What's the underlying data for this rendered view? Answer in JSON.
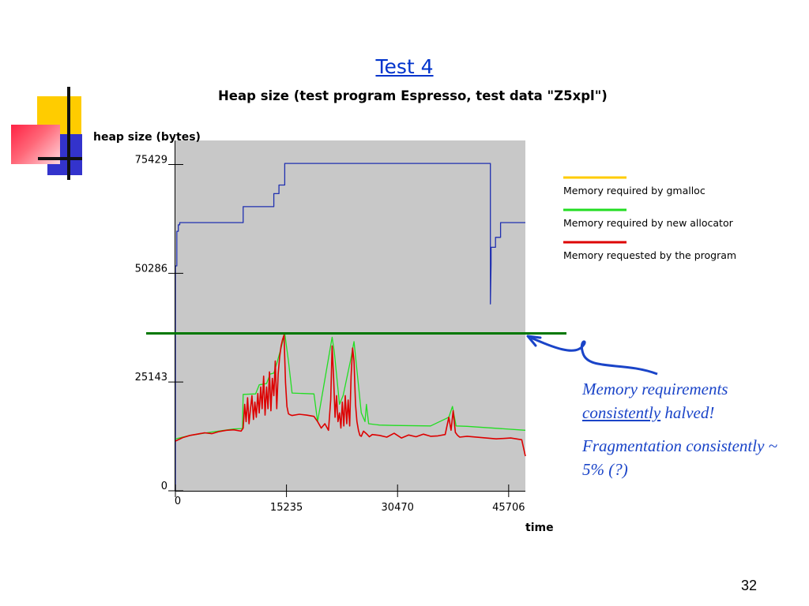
{
  "slide": {
    "title": "Test 4",
    "page_number": "32"
  },
  "annotation": {
    "line1_part1": "Memory requirements",
    "line1_part2_underlined": "consistently",
    "line1_part3": " halved!",
    "line2": "Fragmentation consistently ~ 5% (?)"
  },
  "colors": {
    "blue_series": "#1f2fb0",
    "red_series": "#dd0000",
    "green_series": "#22dd22",
    "gmalloc_legend": "#ffcc00",
    "marker_line": "#007700",
    "plot_bg": "#c8c8c8",
    "annotation": "#1a44c8"
  },
  "chart_data": {
    "type": "line",
    "title": "Heap size (test program Espresso, test data \"Z5xpl\")",
    "xlabel": "time",
    "ylabel": "heap size (bytes)",
    "xlim": [
      0,
      48000
    ],
    "ylim": [
      0,
      81000
    ],
    "x_ticks": [
      0,
      15235,
      30470,
      45706
    ],
    "x_tick_labels": [
      "0",
      "15235",
      "30470",
      "45706"
    ],
    "y_ticks": [
      0,
      25143,
      50286,
      75429
    ],
    "y_tick_labels": [
      "0",
      "25143",
      "50286",
      "75429"
    ],
    "legend": {
      "position": "right",
      "entries": [
        {
          "label": "Memory required by gmalloc",
          "color": "#ffcc00"
        },
        {
          "label": "Memory required by new allocator",
          "color": "#22dd22"
        },
        {
          "label": "Memory requested by the program",
          "color": "#dd0000"
        }
      ]
    },
    "threshold_line": {
      "y": 36400,
      "color": "#007700"
    },
    "series": [
      {
        "color": "#1f2fb0",
        "x": [
          0,
          0,
          200,
          200,
          400,
          400,
          600,
          600,
          9300,
          9300,
          13500,
          13500,
          14200,
          14200,
          15000,
          15000,
          43200,
          43200,
          43300,
          43300,
          43900,
          43900,
          44600,
          44600,
          48000
        ],
        "y": [
          0,
          52000,
          52000,
          60000,
          60000,
          61500,
          61500,
          62000,
          62000,
          65700,
          65700,
          68700,
          68700,
          70700,
          70700,
          75700,
          75700,
          43200,
          52500,
          56300,
          56300,
          58600,
          58600,
          62000,
          62000
        ]
      },
      {
        "color": "#22dd22",
        "x": [
          0,
          2000,
          5000,
          8000,
          9200,
          9300,
          11000,
          11500,
          12500,
          13000,
          13500,
          14000,
          14500,
          15000,
          15500,
          16000,
          19000,
          19500,
          21500,
          21800,
          22500,
          23000,
          24000,
          24500,
          25500,
          26000,
          26200,
          26500,
          27500,
          28000,
          30000,
          35000,
          37500,
          38000,
          38500,
          40000,
          48000
        ],
        "y": [
          12000,
          12800,
          13600,
          14300,
          14400,
          22300,
          22400,
          24500,
          24800,
          27000,
          27200,
          30000,
          33000,
          36400,
          30000,
          22600,
          22400,
          16000,
          35500,
          32000,
          20000,
          22000,
          30000,
          34500,
          18000,
          16000,
          20000,
          15500,
          15300,
          15200,
          15100,
          15000,
          17000,
          19500,
          15000,
          14900,
          14000
        ]
      },
      {
        "color": "#dd0000",
        "x": [
          0,
          1000,
          2000,
          3000,
          4000,
          5000,
          6000,
          7000,
          8000,
          9000,
          9300,
          9500,
          9700,
          9900,
          10100,
          10300,
          10500,
          10700,
          10900,
          11100,
          11300,
          11500,
          11700,
          11900,
          12100,
          12300,
          12500,
          12700,
          12900,
          13100,
          13300,
          13500,
          13700,
          13900,
          14100,
          14300,
          14500,
          14700,
          14900,
          15100,
          15300,
          15500,
          15700,
          16000,
          17000,
          18000,
          19000,
          19500,
          20000,
          20500,
          21000,
          21300,
          21500,
          21700,
          21900,
          22100,
          22300,
          22500,
          22700,
          22900,
          23100,
          23300,
          23500,
          23700,
          23900,
          24100,
          24300,
          24500,
          24700,
          24900,
          25100,
          25300,
          25500,
          25800,
          26200,
          26600,
          27000,
          28000,
          29000,
          30000,
          31000,
          32000,
          33000,
          34000,
          35000,
          36000,
          37000,
          37500,
          37800,
          38100,
          38400,
          38700,
          39000,
          40000,
          42000,
          44000,
          46000,
          47500,
          48000
        ],
        "y": [
          11500,
          12300,
          12800,
          13100,
          13400,
          13200,
          13700,
          14000,
          14100,
          13800,
          14500,
          20000,
          16000,
          21500,
          15500,
          19000,
          22000,
          16500,
          20500,
          17000,
          22500,
          18000,
          24000,
          19000,
          26500,
          17500,
          24000,
          19000,
          27500,
          18500,
          26000,
          22000,
          30000,
          19000,
          27000,
          31000,
          33500,
          35000,
          36000,
          25000,
          19500,
          17800,
          17600,
          17400,
          17700,
          17500,
          17200,
          16000,
          14500,
          15500,
          14000,
          21000,
          33500,
          26000,
          17000,
          22000,
          16000,
          18000,
          14500,
          20500,
          15000,
          22000,
          15500,
          21000,
          15000,
          26500,
          33000,
          30000,
          20000,
          16000,
          14000,
          12800,
          12600,
          13800,
          13200,
          12500,
          13000,
          12800,
          12400,
          13300,
          12200,
          12900,
          12500,
          13100,
          12600,
          12700,
          13000,
          17000,
          14000,
          18500,
          13500,
          12800,
          12400,
          12600,
          12300,
          12000,
          12200,
          11800,
          8000
        ]
      }
    ]
  }
}
